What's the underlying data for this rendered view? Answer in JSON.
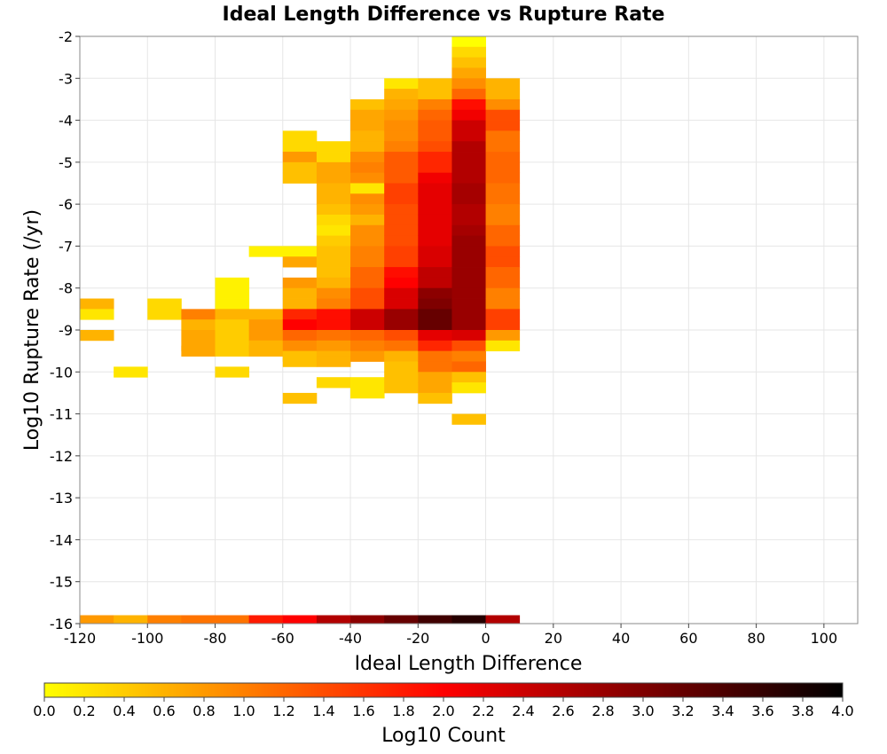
{
  "chart_data": {
    "type": "heatmap",
    "title": "Ideal Length Difference vs Rupture Rate",
    "xlabel": "Ideal Length Difference",
    "ylabel": "Log10 Rupture Rate (/yr)",
    "xlim": [
      -120,
      110
    ],
    "ylim": [
      -16,
      -2
    ],
    "x_ticks": [
      "-120",
      "-100",
      "-80",
      "-60",
      "-40",
      "-20",
      "0",
      "20",
      "40",
      "60",
      "80",
      "100"
    ],
    "y_ticks": [
      "-2",
      "-3",
      "-4",
      "-5",
      "-6",
      "-7",
      "-8",
      "-9",
      "-10",
      "-11",
      "-12",
      "-13",
      "-14",
      "-15",
      "-16"
    ],
    "x_bin_width": 10,
    "y_bin_height": 0.25,
    "grid": true,
    "colorbar": {
      "label": "Log10 Count",
      "range": [
        0,
        4
      ],
      "ticks": [
        "0.0",
        "0.2",
        "0.4",
        "0.6",
        "0.8",
        "1.0",
        "1.2",
        "1.4",
        "1.6",
        "1.8",
        "2.0",
        "2.2",
        "2.4",
        "2.6",
        "2.8",
        "3.0",
        "3.2",
        "3.4",
        "3.6",
        "3.8",
        "4.0"
      ],
      "colors": [
        "#ffff00",
        "#ff8000",
        "#ff0000",
        "#7f0000",
        "#000000"
      ]
    },
    "columns": [
      {
        "x": -115,
        "cells": [
          [
            -8.375,
            0.6
          ],
          [
            -8.625,
            0.2
          ],
          [
            -9.125,
            0.6
          ]
        ]
      },
      {
        "x": -105,
        "cells": [
          [
            -10.0,
            0.2
          ]
        ]
      },
      {
        "x": -95,
        "cells": [
          [
            -8.375,
            0.3
          ],
          [
            -8.625,
            0.3
          ]
        ]
      },
      {
        "x": -85,
        "cells": [
          [
            -8.625,
            1.0
          ],
          [
            -8.875,
            0.6
          ],
          [
            -9.125,
            0.7
          ],
          [
            -9.375,
            0.7
          ],
          [
            -9.5,
            0.7
          ]
        ]
      },
      {
        "x": -75,
        "cells": [
          [
            -7.875,
            0.1
          ],
          [
            -8.125,
            0.1
          ],
          [
            -8.375,
            0.1
          ],
          [
            -8.625,
            0.6
          ],
          [
            -8.875,
            0.4
          ],
          [
            -9.125,
            0.4
          ],
          [
            -9.375,
            0.4
          ],
          [
            -9.5,
            0.4
          ],
          [
            -10.0,
            0.3
          ]
        ]
      },
      {
        "x": -65,
        "cells": [
          [
            -7.125,
            0.1
          ],
          [
            -8.625,
            0.6
          ],
          [
            -8.875,
            0.8
          ],
          [
            -9.125,
            0.8
          ],
          [
            -9.375,
            0.6
          ],
          [
            -9.5,
            0.6
          ]
        ]
      },
      {
        "x": -55,
        "cells": [
          [
            -4.375,
            0.3
          ],
          [
            -4.625,
            0.3
          ],
          [
            -4.875,
            0.8
          ],
          [
            -5.125,
            0.5
          ],
          [
            -5.375,
            0.5
          ],
          [
            -7.125,
            0.1
          ],
          [
            -7.375,
            0.7
          ],
          [
            -7.875,
            0.8
          ],
          [
            -8.125,
            0.6
          ],
          [
            -8.375,
            0.6
          ],
          [
            -8.625,
            1.7
          ],
          [
            -8.875,
            2.0
          ],
          [
            -9.125,
            1.2
          ],
          [
            -9.375,
            0.9
          ],
          [
            -9.625,
            0.5
          ],
          [
            -9.75,
            0.5
          ],
          [
            -10.625,
            0.5
          ]
        ]
      },
      {
        "x": -45,
        "cells": [
          [
            -4.625,
            0.3
          ],
          [
            -4.875,
            0.3
          ],
          [
            -5.125,
            0.7
          ],
          [
            -5.375,
            0.7
          ],
          [
            -5.625,
            0.6
          ],
          [
            -5.875,
            0.6
          ],
          [
            -6.125,
            0.5
          ],
          [
            -6.375,
            0.3
          ],
          [
            -6.625,
            0.2
          ],
          [
            -6.875,
            0.4
          ],
          [
            -7.125,
            0.5
          ],
          [
            -7.375,
            0.5
          ],
          [
            -7.625,
            0.5
          ],
          [
            -7.875,
            0.6
          ],
          [
            -8.125,
            0.9
          ],
          [
            -8.375,
            1.0
          ],
          [
            -8.625,
            1.9
          ],
          [
            -8.875,
            1.9
          ],
          [
            -9.125,
            1.1
          ],
          [
            -9.375,
            0.8
          ],
          [
            -9.625,
            0.6
          ],
          [
            -9.75,
            0.6
          ],
          [
            -10.25,
            0.3
          ]
        ]
      },
      {
        "x": -35,
        "cells": [
          [
            -3.625,
            0.5
          ],
          [
            -3.875,
            0.7
          ],
          [
            -4.125,
            0.7
          ],
          [
            -4.375,
            0.6
          ],
          [
            -4.625,
            0.6
          ],
          [
            -4.875,
            0.9
          ],
          [
            -5.125,
            1.0
          ],
          [
            -5.375,
            0.9
          ],
          [
            -5.625,
            0.2
          ],
          [
            -5.875,
            0.9
          ],
          [
            -6.125,
            0.8
          ],
          [
            -6.375,
            0.6
          ],
          [
            -6.625,
            0.9
          ],
          [
            -6.875,
            0.9
          ],
          [
            -7.125,
            1.0
          ],
          [
            -7.375,
            1.0
          ],
          [
            -7.625,
            1.2
          ],
          [
            -7.875,
            1.2
          ],
          [
            -8.125,
            1.4
          ],
          [
            -8.375,
            1.4
          ],
          [
            -8.625,
            2.4
          ],
          [
            -8.875,
            2.4
          ],
          [
            -9.125,
            1.2
          ],
          [
            -9.375,
            1.0
          ],
          [
            -9.625,
            0.8
          ],
          [
            -10.25,
            0.2
          ],
          [
            -10.5,
            0.2
          ]
        ]
      },
      {
        "x": -25,
        "cells": [
          [
            -3.125,
            0.2
          ],
          [
            -3.375,
            0.6
          ],
          [
            -3.625,
            0.7
          ],
          [
            -3.875,
            0.8
          ],
          [
            -4.125,
            0.9
          ],
          [
            -4.375,
            0.9
          ],
          [
            -4.625,
            1.0
          ],
          [
            -4.875,
            1.3
          ],
          [
            -5.125,
            1.3
          ],
          [
            -5.375,
            1.3
          ],
          [
            -5.625,
            1.5
          ],
          [
            -5.875,
            1.5
          ],
          [
            -6.125,
            1.4
          ],
          [
            -6.375,
            1.4
          ],
          [
            -6.625,
            1.4
          ],
          [
            -6.875,
            1.4
          ],
          [
            -7.125,
            1.5
          ],
          [
            -7.375,
            1.5
          ],
          [
            -7.625,
            1.9
          ],
          [
            -7.875,
            2.0
          ],
          [
            -8.125,
            2.3
          ],
          [
            -8.375,
            2.3
          ],
          [
            -8.625,
            2.8
          ],
          [
            -8.875,
            2.8
          ],
          [
            -9.125,
            1.4
          ],
          [
            -9.375,
            1.1
          ],
          [
            -9.625,
            0.6
          ],
          [
            -9.875,
            0.5
          ],
          [
            -10.125,
            0.5
          ],
          [
            -10.375,
            0.5
          ]
        ]
      },
      {
        "x": -15,
        "cells": [
          [
            -3.125,
            0.5
          ],
          [
            -3.375,
            0.5
          ],
          [
            -3.625,
            1.0
          ],
          [
            -3.875,
            1.2
          ],
          [
            -4.125,
            1.3
          ],
          [
            -4.375,
            1.3
          ],
          [
            -4.625,
            1.4
          ],
          [
            -4.875,
            1.7
          ],
          [
            -5.125,
            1.7
          ],
          [
            -5.375,
            2.1
          ],
          [
            -5.625,
            2.2
          ],
          [
            -5.875,
            2.2
          ],
          [
            -6.125,
            2.2
          ],
          [
            -6.375,
            2.2
          ],
          [
            -6.625,
            2.2
          ],
          [
            -6.875,
            2.2
          ],
          [
            -7.125,
            2.3
          ],
          [
            -7.375,
            2.3
          ],
          [
            -7.625,
            2.5
          ],
          [
            -7.875,
            2.5
          ],
          [
            -8.125,
            2.9
          ],
          [
            -8.375,
            3.0
          ],
          [
            -8.625,
            3.2
          ],
          [
            -8.875,
            3.2
          ],
          [
            -9.125,
            2.2
          ],
          [
            -9.375,
            1.7
          ],
          [
            -9.625,
            1.1
          ],
          [
            -9.875,
            1.1
          ],
          [
            -10.125,
            0.7
          ],
          [
            -10.375,
            0.7
          ],
          [
            -10.625,
            0.5
          ]
        ]
      },
      {
        "x": -5,
        "cells": [
          [
            -2.125,
            0.0
          ],
          [
            -2.375,
            0.3
          ],
          [
            -2.625,
            0.5
          ],
          [
            -2.875,
            0.7
          ],
          [
            -3.125,
            0.9
          ],
          [
            -3.375,
            1.2
          ],
          [
            -3.625,
            1.9
          ],
          [
            -3.875,
            2.1
          ],
          [
            -4.125,
            2.4
          ],
          [
            -4.375,
            2.4
          ],
          [
            -4.625,
            2.6
          ],
          [
            -4.875,
            2.6
          ],
          [
            -5.125,
            2.6
          ],
          [
            -5.375,
            2.6
          ],
          [
            -5.625,
            2.7
          ],
          [
            -5.875,
            2.7
          ],
          [
            -6.125,
            2.6
          ],
          [
            -6.375,
            2.6
          ],
          [
            -6.625,
            2.7
          ],
          [
            -6.875,
            2.8
          ],
          [
            -7.125,
            2.8
          ],
          [
            -7.375,
            2.8
          ],
          [
            -7.625,
            2.8
          ],
          [
            -7.875,
            2.8
          ],
          [
            -8.125,
            2.8
          ],
          [
            -8.375,
            2.8
          ],
          [
            -8.625,
            2.8
          ],
          [
            -8.875,
            2.8
          ],
          [
            -9.125,
            2.3
          ],
          [
            -9.375,
            1.4
          ],
          [
            -9.625,
            1.0
          ],
          [
            -9.875,
            1.2
          ],
          [
            -10.125,
            0.5
          ],
          [
            -10.375,
            0.2
          ],
          [
            -11.125,
            0.5
          ]
        ]
      },
      {
        "x": 5,
        "cells": [
          [
            -3.125,
            0.6
          ],
          [
            -3.375,
            0.6
          ],
          [
            -3.625,
            0.9
          ],
          [
            -3.875,
            1.4
          ],
          [
            -4.125,
            1.4
          ],
          [
            -4.375,
            1.1
          ],
          [
            -4.625,
            1.1
          ],
          [
            -4.875,
            1.2
          ],
          [
            -5.125,
            1.2
          ],
          [
            -5.375,
            1.2
          ],
          [
            -5.625,
            1.1
          ],
          [
            -5.875,
            1.1
          ],
          [
            -6.125,
            1.0
          ],
          [
            -6.375,
            1.0
          ],
          [
            -6.625,
            1.2
          ],
          [
            -6.875,
            1.2
          ],
          [
            -7.125,
            1.4
          ],
          [
            -7.375,
            1.4
          ],
          [
            -7.625,
            1.2
          ],
          [
            -7.875,
            1.2
          ],
          [
            -8.125,
            1.0
          ],
          [
            -8.375,
            1.0
          ],
          [
            -8.625,
            1.5
          ],
          [
            -8.875,
            1.5
          ],
          [
            -9.125,
            0.8
          ],
          [
            -9.375,
            0.2
          ]
        ]
      }
    ],
    "bottom_row": {
      "y": -15.9,
      "cells": [
        [
          -115,
          0.8
        ],
        [
          -105,
          0.6
        ],
        [
          -95,
          1.0
        ],
        [
          -85,
          1.1
        ],
        [
          -75,
          1.1
        ],
        [
          -65,
          1.8
        ],
        [
          -55,
          2.0
        ],
        [
          -45,
          2.6
        ],
        [
          -35,
          2.9
        ],
        [
          -25,
          3.2
        ],
        [
          -15,
          3.5
        ],
        [
          -5,
          3.7
        ],
        [
          5,
          2.6
        ]
      ]
    }
  }
}
